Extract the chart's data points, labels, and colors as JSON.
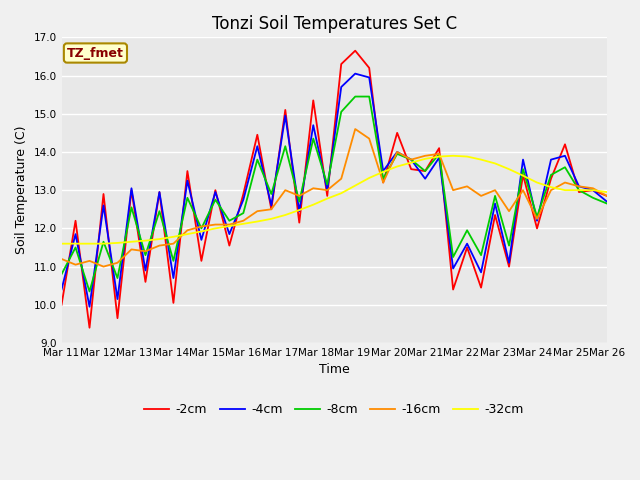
{
  "title": "Tonzi Soil Temperatures Set C",
  "xlabel": "Time",
  "ylabel": "Soil Temperature (C)",
  "annotation": "TZ_fmet",
  "ylim": [
    9.0,
    17.0
  ],
  "yticks": [
    9.0,
    10.0,
    11.0,
    12.0,
    13.0,
    14.0,
    15.0,
    16.0,
    17.0
  ],
  "x_labels": [
    "Mar 11",
    "Mar 12",
    "Mar 13",
    "Mar 14",
    "Mar 15",
    "Mar 16",
    "Mar 17",
    "Mar 18",
    "Mar 19",
    "Mar 20",
    "Mar 21",
    "Mar 22",
    "Mar 23",
    "Mar 24",
    "Mar 25",
    "Mar 26"
  ],
  "series": {
    "-2cm": {
      "color": "#ff0000",
      "values": [
        10.0,
        12.2,
        9.4,
        12.9,
        9.65,
        13.0,
        10.6,
        12.95,
        10.05,
        13.5,
        11.15,
        13.0,
        11.55,
        12.9,
        14.45,
        12.5,
        15.1,
        12.15,
        15.35,
        12.85,
        16.3,
        16.65,
        16.2,
        13.2,
        14.5,
        13.55,
        13.5,
        14.1,
        10.4,
        11.5,
        10.45,
        12.35,
        11.0,
        13.4,
        12.0,
        13.3,
        14.2,
        12.95,
        13.0,
        12.85
      ]
    },
    "-4cm": {
      "color": "#0000ff",
      "values": [
        10.4,
        11.85,
        9.95,
        12.6,
        10.15,
        13.05,
        10.9,
        12.95,
        10.7,
        13.25,
        11.7,
        12.95,
        11.85,
        12.75,
        14.15,
        12.6,
        14.95,
        12.45,
        14.7,
        13.0,
        15.7,
        16.05,
        15.95,
        13.5,
        14.0,
        13.8,
        13.3,
        13.85,
        10.95,
        11.6,
        10.85,
        12.65,
        11.1,
        13.8,
        12.2,
        13.8,
        13.9,
        13.1,
        13.0,
        12.7
      ]
    },
    "-8cm": {
      "color": "#00cc00",
      "values": [
        10.8,
        11.5,
        10.35,
        11.65,
        10.7,
        12.55,
        11.3,
        12.45,
        11.15,
        12.8,
        12.0,
        12.75,
        12.2,
        12.4,
        13.8,
        12.9,
        14.15,
        12.7,
        14.35,
        13.15,
        15.05,
        15.45,
        15.45,
        13.3,
        13.95,
        13.8,
        13.5,
        13.95,
        11.25,
        11.95,
        11.3,
        12.85,
        11.55,
        13.55,
        12.3,
        13.4,
        13.6,
        13.0,
        12.8,
        12.65
      ]
    },
    "-16cm": {
      "color": "#ff8c00",
      "values": [
        11.2,
        11.05,
        11.15,
        11.0,
        11.1,
        11.45,
        11.4,
        11.55,
        11.6,
        11.95,
        12.05,
        12.1,
        12.1,
        12.2,
        12.45,
        12.5,
        13.0,
        12.85,
        13.05,
        13.0,
        13.3,
        14.6,
        14.35,
        13.2,
        14.0,
        13.8,
        13.9,
        13.95,
        13.0,
        13.1,
        12.85,
        13.0,
        12.45,
        13.0,
        12.25,
        13.0,
        13.2,
        13.1,
        13.05,
        12.85
      ]
    },
    "-32cm": {
      "color": "#ffff00",
      "values": [
        11.6,
        11.6,
        11.6,
        11.6,
        11.62,
        11.65,
        11.68,
        11.72,
        11.78,
        11.85,
        11.92,
        12.0,
        12.06,
        12.12,
        12.18,
        12.25,
        12.35,
        12.48,
        12.62,
        12.78,
        12.92,
        13.12,
        13.32,
        13.48,
        13.62,
        13.72,
        13.82,
        13.88,
        13.9,
        13.88,
        13.8,
        13.7,
        13.55,
        13.38,
        13.2,
        13.08,
        13.0,
        13.0,
        13.0,
        12.95
      ]
    }
  },
  "bg_color": "#e8e8e8",
  "grid_color": "#ffffff",
  "title_fontsize": 12,
  "label_fontsize": 9,
  "tick_fontsize": 7.5,
  "legend_fontsize": 9,
  "annotation_fontsize": 9,
  "annotation_bg": "#ffffcc",
  "annotation_border": "#aa8800",
  "annotation_text_color": "#880000",
  "fig_width": 6.4,
  "fig_height": 4.8,
  "fig_dpi": 100,
  "fig_bg": "#f0f0f0",
  "n_days": 16
}
